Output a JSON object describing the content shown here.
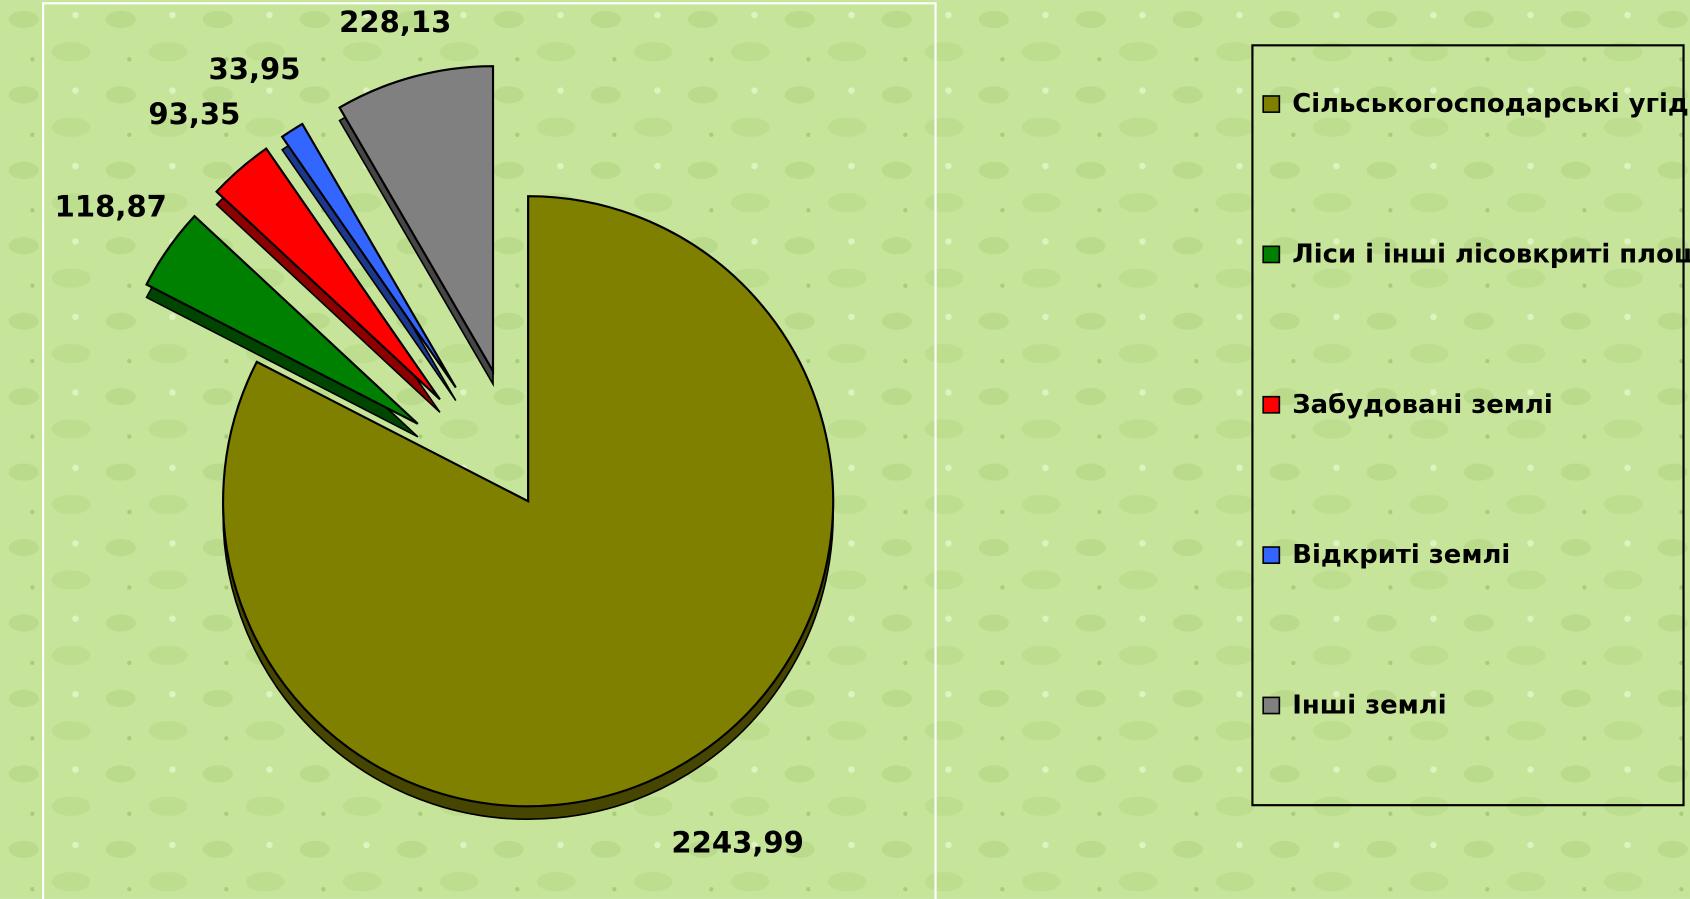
{
  "chart_data": {
    "type": "pie",
    "categories": [
      "Сільськогосподарські угіддя",
      "Ліси і інші лісовкриті площі",
      "Забудовані землі",
      "Відкриті землі",
      "Інші землі"
    ],
    "values": [
      2243.99,
      118.87,
      93.35,
      33.95,
      228.13
    ],
    "value_labels": [
      "2243,99",
      "118,87",
      "93,35",
      "33,95",
      "228,13"
    ],
    "colors": [
      "#808000",
      "#008000",
      "#ff0000",
      "#3366ff",
      "#808080"
    ],
    "legend": "right"
  }
}
